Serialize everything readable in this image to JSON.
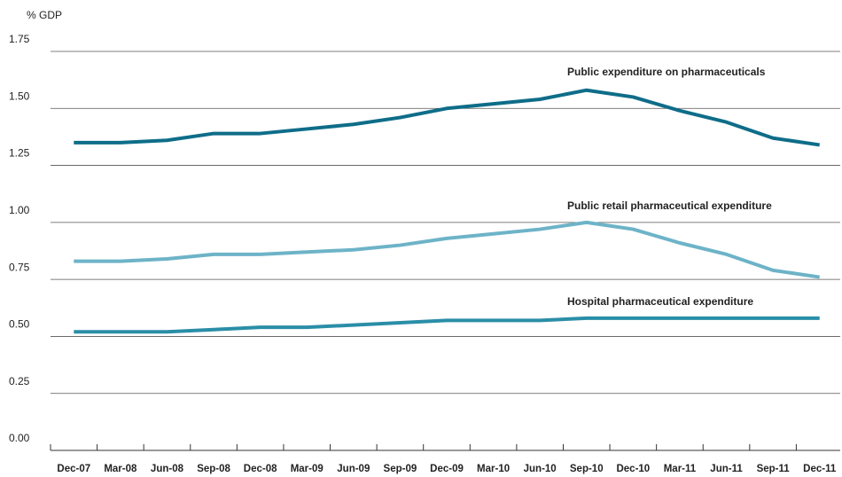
{
  "chart_data": {
    "type": "line",
    "y_label": "% GDP",
    "categories": [
      "Dec-07",
      "Mar-08",
      "Jun-08",
      "Sep-08",
      "Dec-08",
      "Mar-09",
      "Jun-09",
      "Sep-09",
      "Dec-09",
      "Mar-10",
      "Jun-10",
      "Sep-10",
      "Dec-10",
      "Mar-11",
      "Jun-11",
      "Sep-11",
      "Dec-11"
    ],
    "series": [
      {
        "name": "Public expenditure on pharmaceuticals",
        "color": "#0e6d89",
        "values": [
          1.35,
          1.35,
          1.36,
          1.39,
          1.39,
          1.41,
          1.43,
          1.46,
          1.5,
          1.52,
          1.54,
          1.58,
          1.55,
          1.49,
          1.44,
          1.37,
          1.34
        ]
      },
      {
        "name": "Public retail pharmaceutical expenditure",
        "color": "#6db3c8",
        "values": [
          0.83,
          0.83,
          0.84,
          0.86,
          0.86,
          0.87,
          0.88,
          0.9,
          0.93,
          0.95,
          0.97,
          1.0,
          0.97,
          0.91,
          0.86,
          0.79,
          0.76
        ]
      },
      {
        "name": "Hospital pharmaceutical expenditure",
        "color": "#2a8ea7",
        "values": [
          0.52,
          0.52,
          0.52,
          0.53,
          0.54,
          0.54,
          0.55,
          0.56,
          0.57,
          0.57,
          0.57,
          0.58,
          0.58,
          0.58,
          0.58,
          0.58,
          0.58
        ]
      }
    ],
    "ylim": [
      0,
      1.75
    ],
    "yticks": [
      {
        "value": 0,
        "label": "0.00"
      },
      0.25,
      {
        "value": 0.5,
        "label": "0.50"
      },
      0.75,
      {
        "value": 1,
        "label": "1.00"
      },
      1.25,
      {
        "value": 1.5,
        "label": "1.50"
      },
      1.75
    ],
    "grid": true
  }
}
